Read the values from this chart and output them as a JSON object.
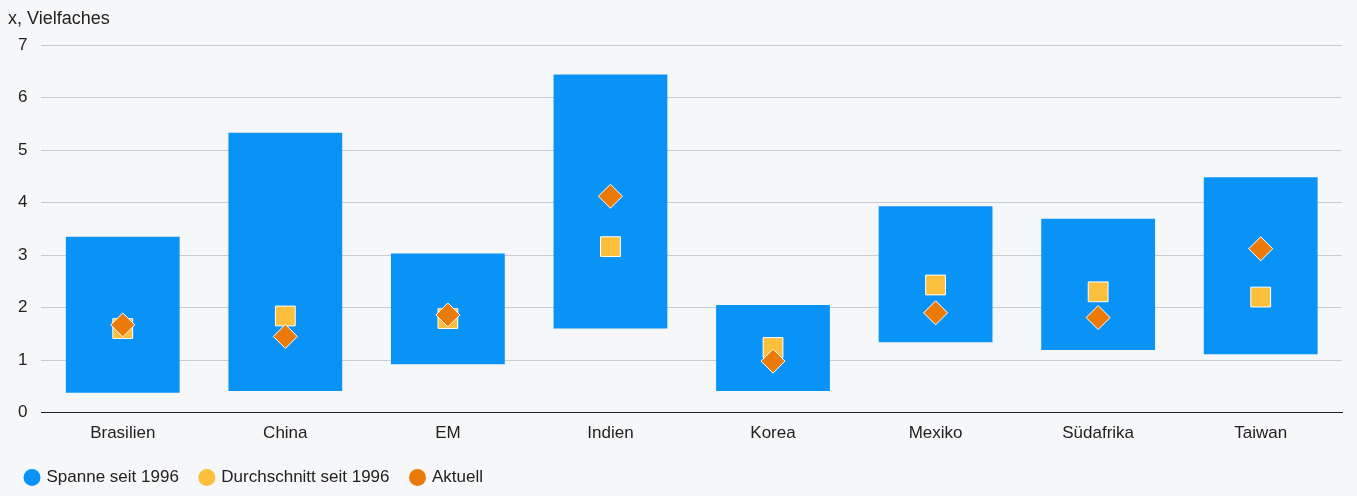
{
  "chart_data": {
    "type": "bar",
    "ylabel": "x, Vielfaches",
    "categories": [
      "Brasilien",
      "China",
      "EM",
      "Indien",
      "Korea",
      "Mexiko",
      "Südafrika",
      "Taiwan"
    ],
    "series": [
      {
        "name": "Spanne seit 1996",
        "type": "bar",
        "color": "#0a93f7",
        "base": [
          0.38,
          0.41,
          0.92,
          1.6,
          0.41,
          1.34,
          1.19,
          1.11
        ],
        "values": [
          2.97,
          4.92,
          2.11,
          4.84,
          1.64,
          2.59,
          2.5,
          3.37
        ]
      },
      {
        "name": "Durchschnitt seit 1996",
        "type": "scatter",
        "marker": "square",
        "color": "#fbbf3c",
        "x": [
          "Brasilien",
          "China",
          "EM",
          "Indien",
          "Korea",
          "Mexiko",
          "Südafrika",
          "Taiwan"
        ],
        "values": [
          1.6,
          1.84,
          1.79,
          3.16,
          1.24,
          2.43,
          2.3,
          2.2
        ]
      },
      {
        "name": "Aktuell",
        "type": "scatter",
        "marker": "diamond",
        "color": "#ec7a08",
        "x": [
          "Brasilien",
          "China",
          "EM",
          "Indien",
          "Korea",
          "Mexiko",
          "Südafrika",
          "Taiwan"
        ],
        "values": [
          1.67,
          1.45,
          1.86,
          4.12,
          0.98,
          1.9,
          1.81,
          3.12
        ]
      }
    ],
    "ylim": [
      0,
      7
    ],
    "yticks": [
      0,
      1,
      2,
      3,
      4,
      5,
      6,
      7
    ],
    "grid": "y",
    "legend": "bottom left"
  }
}
